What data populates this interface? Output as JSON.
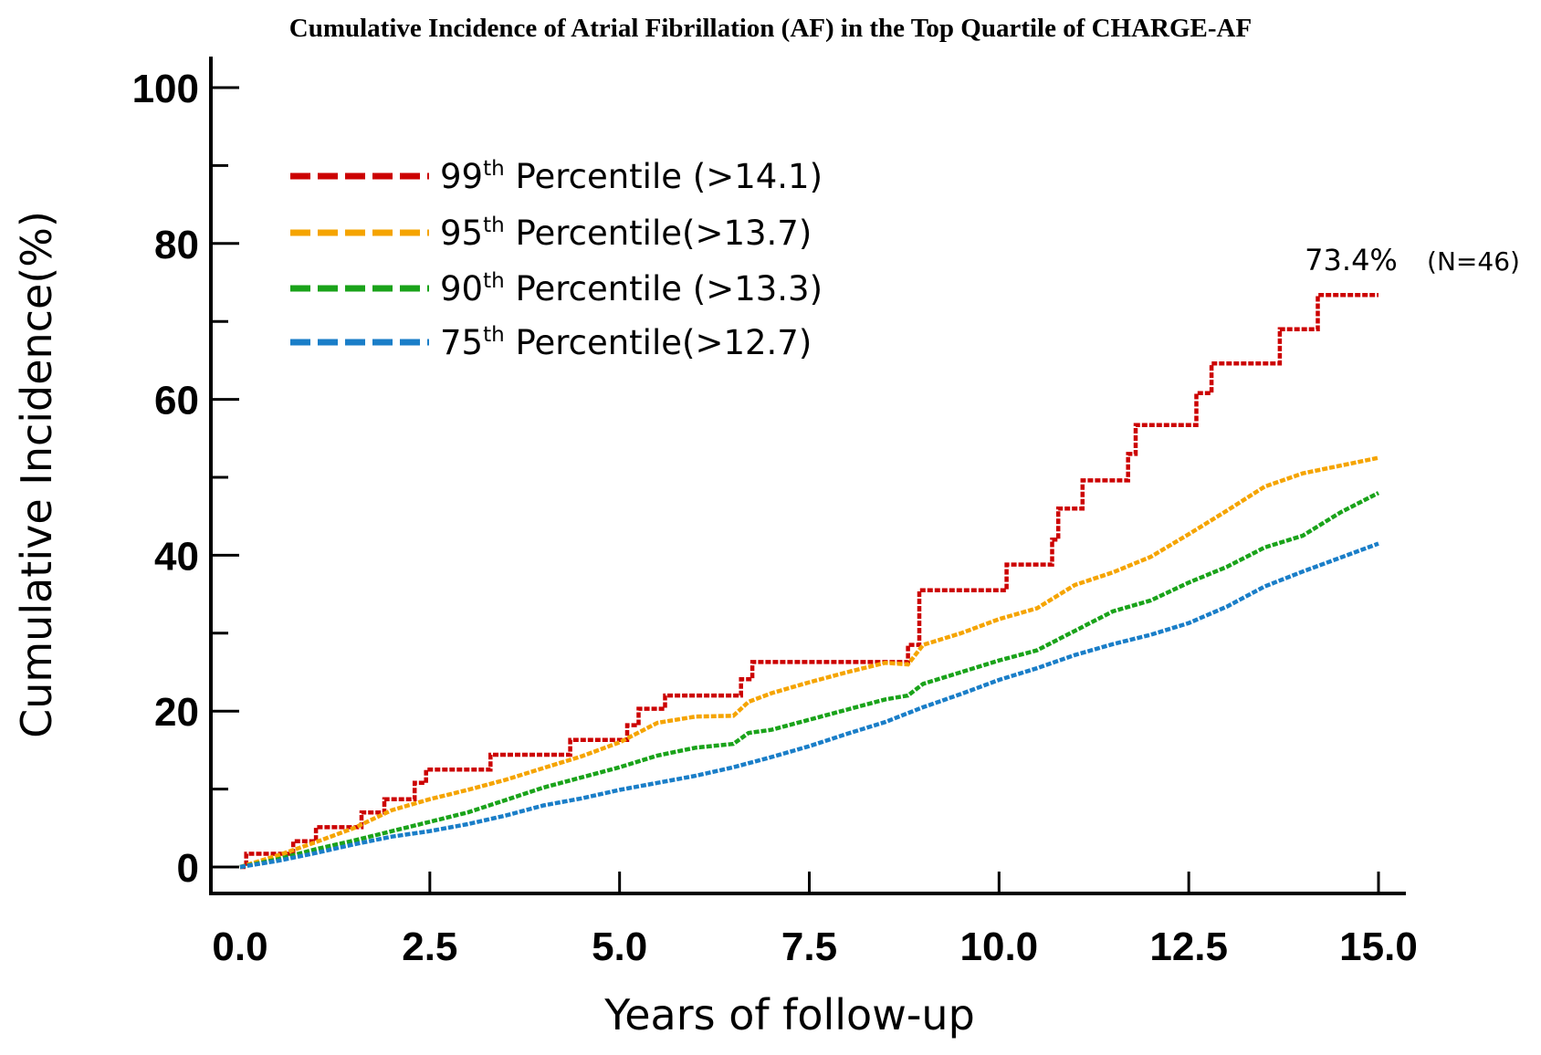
{
  "chart_data": {
    "type": "line",
    "title": "Cumulative Incidence of Atrial Fibrillation (AF) in the Top Quartile of CHARGE-AF",
    "xlabel": "Years of follow-up",
    "ylabel": "Cumulative Incidence(%)",
    "xlim": [
      0,
      15
    ],
    "ylim": [
      0,
      100
    ],
    "x_ticks": [
      "0.0",
      "2.5",
      "5.0",
      "7.5",
      "10.0",
      "12.5",
      "15.0"
    ],
    "y_ticks": [
      "0",
      "20",
      "40",
      "60",
      "80",
      "100"
    ],
    "grid": false,
    "legend_position": "top-left",
    "series": [
      {
        "name_prefix": "99",
        "name_sup": "th",
        "name_suffix": " Percentile (>14.1)",
        "color": "#cc0000",
        "step": true,
        "points": [
          [
            0.0,
            0.0
          ],
          [
            0.08,
            1.7
          ],
          [
            0.7,
            3.3
          ],
          [
            1.0,
            5.1
          ],
          [
            1.6,
            7.0
          ],
          [
            1.9,
            8.7
          ],
          [
            2.3,
            10.8
          ],
          [
            2.45,
            12.5
          ],
          [
            3.3,
            14.4
          ],
          [
            4.35,
            16.3
          ],
          [
            5.1,
            18.2
          ],
          [
            5.25,
            20.3
          ],
          [
            5.6,
            22.0
          ],
          [
            6.6,
            24.1
          ],
          [
            6.75,
            26.3
          ],
          [
            8.8,
            28.5
          ],
          [
            8.95,
            35.5
          ],
          [
            10.1,
            38.8
          ],
          [
            10.7,
            42.0
          ],
          [
            10.78,
            46.0
          ],
          [
            11.1,
            49.6
          ],
          [
            11.7,
            53.0
          ],
          [
            11.8,
            56.7
          ],
          [
            12.6,
            60.8
          ],
          [
            12.8,
            64.6
          ],
          [
            13.7,
            69.0
          ],
          [
            14.2,
            73.4
          ],
          [
            15.0,
            73.4
          ]
        ]
      },
      {
        "name_prefix": "95",
        "name_sup": "th",
        "name_suffix": " Percentile(>13.7)",
        "color": "#f5a400",
        "step": false,
        "points": [
          [
            0.0,
            0.0
          ],
          [
            0.5,
            1.5
          ],
          [
            1.0,
            3.2
          ],
          [
            1.5,
            5.0
          ],
          [
            2.0,
            7.3
          ],
          [
            2.5,
            8.7
          ],
          [
            3.0,
            9.9
          ],
          [
            3.5,
            11.2
          ],
          [
            4.0,
            12.7
          ],
          [
            4.5,
            14.2
          ],
          [
            5.0,
            16.0
          ],
          [
            5.5,
            18.5
          ],
          [
            6.0,
            19.3
          ],
          [
            6.5,
            19.4
          ],
          [
            6.7,
            21.2
          ],
          [
            7.0,
            22.3
          ],
          [
            7.5,
            23.7
          ],
          [
            8.0,
            25.0
          ],
          [
            8.5,
            26.2
          ],
          [
            8.8,
            26.0
          ],
          [
            9.0,
            28.5
          ],
          [
            9.5,
            30.0
          ],
          [
            10.0,
            31.8
          ],
          [
            10.5,
            33.2
          ],
          [
            11.0,
            36.2
          ],
          [
            11.5,
            37.8
          ],
          [
            12.0,
            39.8
          ],
          [
            12.5,
            42.7
          ],
          [
            13.0,
            45.7
          ],
          [
            13.5,
            48.8
          ],
          [
            14.0,
            50.5
          ],
          [
            14.5,
            51.5
          ],
          [
            15.0,
            52.5
          ]
        ]
      },
      {
        "name_prefix": "90",
        "name_sup": "th",
        "name_suffix": " Percentile (>13.3)",
        "color": "#1aa31a",
        "step": false,
        "points": [
          [
            0.0,
            0.0
          ],
          [
            0.5,
            1.0
          ],
          [
            1.0,
            2.3
          ],
          [
            1.5,
            3.4
          ],
          [
            2.0,
            4.6
          ],
          [
            2.5,
            5.8
          ],
          [
            3.0,
            7.0
          ],
          [
            3.5,
            8.6
          ],
          [
            4.0,
            10.2
          ],
          [
            4.5,
            11.5
          ],
          [
            5.0,
            12.8
          ],
          [
            5.5,
            14.3
          ],
          [
            6.0,
            15.3
          ],
          [
            6.5,
            15.8
          ],
          [
            6.7,
            17.2
          ],
          [
            7.0,
            17.6
          ],
          [
            7.5,
            18.9
          ],
          [
            8.0,
            20.2
          ],
          [
            8.5,
            21.5
          ],
          [
            8.8,
            22.0
          ],
          [
            9.0,
            23.5
          ],
          [
            9.5,
            25.0
          ],
          [
            10.0,
            26.5
          ],
          [
            10.5,
            27.8
          ],
          [
            11.0,
            30.3
          ],
          [
            11.5,
            32.8
          ],
          [
            12.0,
            34.2
          ],
          [
            12.5,
            36.5
          ],
          [
            13.0,
            38.5
          ],
          [
            13.5,
            41.0
          ],
          [
            14.0,
            42.5
          ],
          [
            14.5,
            45.5
          ],
          [
            15.0,
            48.0
          ]
        ]
      },
      {
        "name_prefix": "75",
        "name_sup": "th",
        "name_suffix": " Percentile(>12.7)",
        "color": "#1a7ec8",
        "step": false,
        "points": [
          [
            0.0,
            0.0
          ],
          [
            0.5,
            0.8
          ],
          [
            1.0,
            1.8
          ],
          [
            1.5,
            2.9
          ],
          [
            2.0,
            3.9
          ],
          [
            2.5,
            4.6
          ],
          [
            3.0,
            5.5
          ],
          [
            3.5,
            6.6
          ],
          [
            4.0,
            7.9
          ],
          [
            4.5,
            8.8
          ],
          [
            5.0,
            9.9
          ],
          [
            5.5,
            10.8
          ],
          [
            6.0,
            11.7
          ],
          [
            6.5,
            12.8
          ],
          [
            7.0,
            14.1
          ],
          [
            7.5,
            15.5
          ],
          [
            8.0,
            17.1
          ],
          [
            8.5,
            18.6
          ],
          [
            9.0,
            20.5
          ],
          [
            9.5,
            22.2
          ],
          [
            10.0,
            24.0
          ],
          [
            10.5,
            25.5
          ],
          [
            11.0,
            27.2
          ],
          [
            11.5,
            28.6
          ],
          [
            12.0,
            29.8
          ],
          [
            12.5,
            31.3
          ],
          [
            13.0,
            33.4
          ],
          [
            13.5,
            36.0
          ],
          [
            14.0,
            37.9
          ],
          [
            14.5,
            39.7
          ],
          [
            15.0,
            41.5
          ]
        ]
      }
    ],
    "annotation": {
      "value_text": "73.4%",
      "n_text": "(N=46)"
    }
  }
}
